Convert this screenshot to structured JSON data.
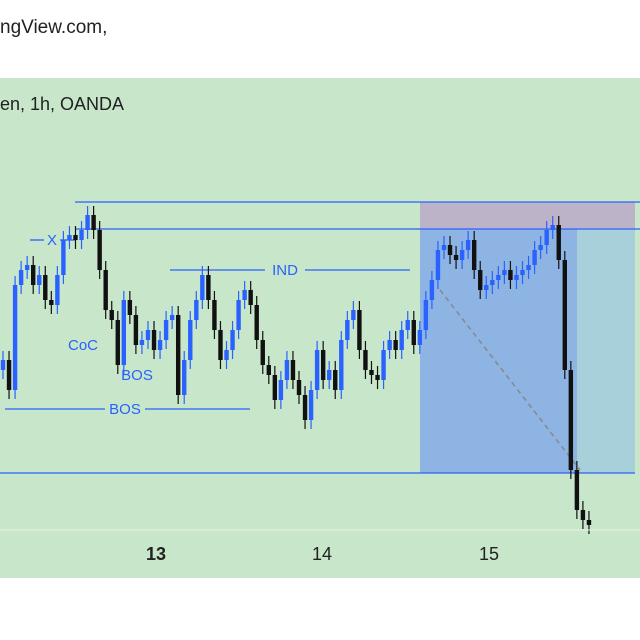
{
  "header": {
    "source": "ngView.com,"
  },
  "chart": {
    "title": "en, 1h, OANDA",
    "annotations": [
      "X",
      "CoC",
      "BOS",
      "BOS",
      "IND"
    ],
    "x_labels": [
      "13",
      "14",
      "15"
    ]
  }
}
